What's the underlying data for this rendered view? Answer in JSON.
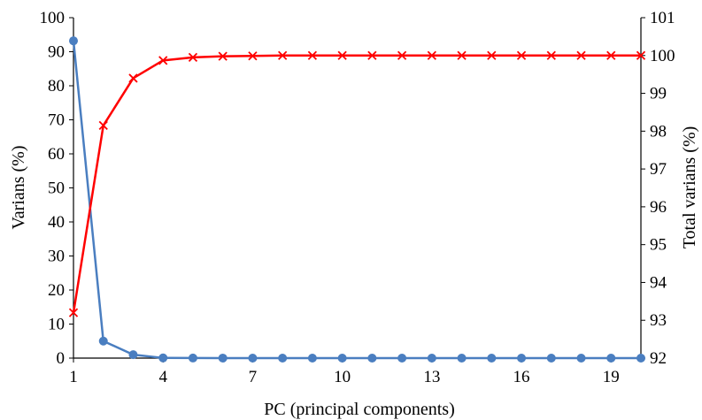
{
  "chart_data": {
    "type": "line",
    "title": "",
    "xlabel": "PC (principal components)",
    "ylabel_left": "Varians (%)",
    "ylabel_right": "Total varians (%)",
    "xlim": [
      1,
      20
    ],
    "xticks": [
      1,
      4,
      7,
      10,
      13,
      16,
      19
    ],
    "ylim_left": [
      0,
      100
    ],
    "yticks_left": [
      0,
      10,
      20,
      30,
      40,
      50,
      60,
      70,
      80,
      90,
      100
    ],
    "ylim_right": [
      92,
      101
    ],
    "yticks_right": [
      92,
      93,
      94,
      95,
      96,
      97,
      98,
      99,
      100,
      101
    ],
    "grid": false,
    "legend": "none",
    "x": [
      1,
      2,
      3,
      4,
      5,
      6,
      7,
      8,
      9,
      10,
      11,
      12,
      13,
      14,
      15,
      16,
      17,
      18,
      19,
      20
    ],
    "series": [
      {
        "axis": "left",
        "color": "#4a7ec0",
        "marker": "circle",
        "values": [
          93.2,
          5.0,
          1.0,
          0.05,
          0.02,
          0.01,
          0,
          0,
          0,
          0,
          0,
          0,
          0,
          0,
          0,
          0,
          0,
          0,
          0,
          0
        ]
      },
      {
        "axis": "right",
        "color": "#ff0000",
        "marker": "x",
        "values": [
          93.2,
          98.15,
          99.4,
          99.87,
          99.95,
          99.98,
          99.99,
          100,
          100,
          100,
          100,
          100,
          100,
          100,
          100,
          100,
          100,
          100,
          100,
          100
        ]
      }
    ]
  }
}
